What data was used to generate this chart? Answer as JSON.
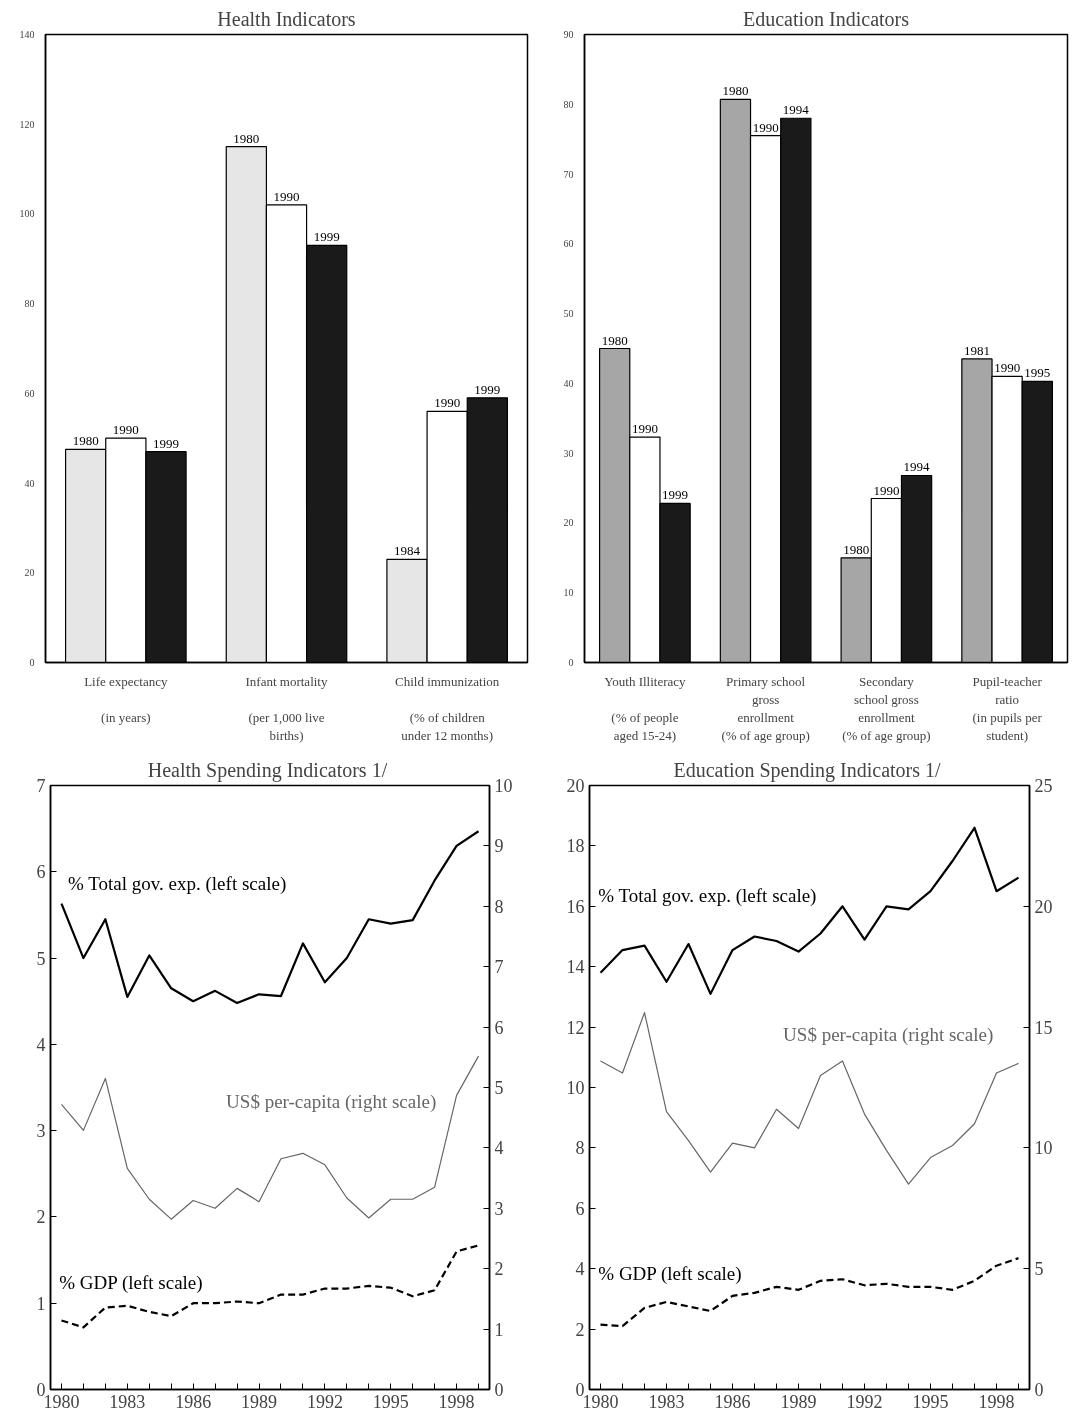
{
  "chart_data": [
    {
      "type": "bar",
      "title": "Health Indicators",
      "categories": [
        "Life expectancy\n\n(in years)",
        "Infant mortality\n\n(per 1,000 live\nbirths)",
        "Child immunization\n\n(% of children\nunder 12 months)"
      ],
      "ylim": [
        0,
        140
      ],
      "yticks": [
        0,
        20,
        40,
        60,
        80,
        100,
        120,
        140
      ],
      "grid": false,
      "series": [
        {
          "color": "#e6e6e6",
          "values": [
            47.5,
            115,
            23
          ]
        },
        {
          "color": "#ffffff",
          "values": [
            50,
            102,
            56
          ]
        },
        {
          "color": "#1a1a1a",
          "values": [
            47,
            93,
            59
          ]
        }
      ],
      "annotations": [
        "1980",
        "1990",
        "1999",
        "1980",
        "1990",
        "1999",
        "1984",
        "1990",
        "1999"
      ]
    },
    {
      "type": "bar",
      "title": "Education Indicators",
      "categories": [
        "Youth Illiteracy\n\n(% of people\naged 15-24)",
        "Primary school\ngross\nenrollment\n(% of age group)",
        "Secondary\nschool gross\nenrollment\n(% of age group)",
        "Pupil-teacher\nratio\n(in pupils per\nstudent)"
      ],
      "ylim": [
        0,
        90
      ],
      "yticks": [
        0,
        10,
        20,
        30,
        40,
        50,
        60,
        70,
        80,
        90
      ],
      "grid": false,
      "series": [
        {
          "color": "#a6a6a6",
          "values": [
            45,
            80.7,
            15,
            43.5
          ]
        },
        {
          "color": "#ffffff",
          "values": [
            32.3,
            75.5,
            23.5,
            41
          ]
        },
        {
          "color": "#1a1a1a",
          "values": [
            22.8,
            78,
            26.8,
            40.3
          ]
        }
      ],
      "annotations": [
        "1980",
        "1990",
        "1999",
        "1980",
        "1990",
        "1994",
        "1980",
        "1990",
        "1994",
        "1981",
        "1990",
        "1995"
      ]
    },
    {
      "type": "line",
      "title": "Health Spending Indicators  1/",
      "x": [
        1980,
        1981,
        1982,
        1983,
        1984,
        1985,
        1986,
        1987,
        1988,
        1989,
        1990,
        1991,
        1992,
        1993,
        1994,
        1995,
        1996,
        1997,
        1998,
        1999
      ],
      "xlim": [
        1979.5,
        1999.5
      ],
      "xticks": [
        1980,
        {
          "value": 1981,
          "label": null
        },
        {
          "value": 1982,
          "label": null
        },
        1983,
        {
          "value": 1984,
          "label": null
        },
        {
          "value": 1985,
          "label": null
        },
        1986,
        {
          "value": 1987,
          "label": null
        },
        {
          "value": 1988,
          "label": null
        },
        1989,
        {
          "value": 1990,
          "label": null
        },
        {
          "value": 1991,
          "label": null
        },
        1992,
        {
          "value": 1993,
          "label": null
        },
        {
          "value": 1994,
          "label": null
        },
        1995,
        {
          "value": 1996,
          "label": null
        },
        {
          "value": 1997,
          "label": null
        },
        1998,
        {
          "value": 1999,
          "label": null
        }
      ],
      "ylim": [
        0,
        7
      ],
      "yticks": [
        0,
        1,
        2,
        3,
        4,
        5,
        6,
        7
      ],
      "y2lim": [
        0,
        10
      ],
      "y2ticks": [
        0,
        1,
        2,
        3,
        4,
        5,
        6,
        7,
        8,
        9,
        10
      ],
      "grid": false,
      "series": [
        {
          "name": "% Total gov. exp. (left scale)",
          "color": "#000000",
          "values": [
            5.63,
            5.0,
            5.45,
            4.55,
            5.03,
            4.65,
            4.5,
            4.62,
            4.48,
            4.58,
            4.56,
            5.17,
            4.72,
            5.0,
            5.45,
            5.4,
            5.44,
            5.9,
            6.3,
            6.47
          ]
        },
        {
          "name": "US$ per-capita (right scale)",
          "color": "#666666",
          "axis": "y2",
          "values": [
            4.72,
            4.29,
            5.15,
            3.66,
            3.15,
            2.82,
            3.13,
            3.0,
            3.33,
            3.11,
            3.82,
            3.91,
            3.72,
            3.17,
            2.84,
            3.15,
            3.15,
            3.35,
            4.87,
            5.52
          ]
        },
        {
          "name": "% GDP (left scale)",
          "color": "#000000",
          "line_style": "dashed",
          "values": [
            0.8,
            0.72,
            0.95,
            0.97,
            0.9,
            0.85,
            1.0,
            1.0,
            1.02,
            1.0,
            1.1,
            1.1,
            1.17,
            1.17,
            1.2,
            1.18,
            1.08,
            1.15,
            1.6,
            1.67
          ]
        }
      ]
    },
    {
      "type": "line",
      "title": "Education Spending Indicators  1/",
      "x": [
        1980,
        1981,
        1982,
        1983,
        1984,
        1985,
        1986,
        1987,
        1988,
        1989,
        1990,
        1991,
        1992,
        1993,
        1994,
        1995,
        1996,
        1997,
        1998,
        1999
      ],
      "xlim": [
        1979.5,
        1999.5
      ],
      "xticks": [
        1980,
        {
          "value": 1981,
          "label": null
        },
        {
          "value": 1982,
          "label": null
        },
        1983,
        {
          "value": 1984,
          "label": null
        },
        {
          "value": 1985,
          "label": null
        },
        1986,
        {
          "value": 1987,
          "label": null
        },
        {
          "value": 1988,
          "label": null
        },
        1989,
        {
          "value": 1990,
          "label": null
        },
        {
          "value": 1991,
          "label": null
        },
        1992,
        {
          "value": 1993,
          "label": null
        },
        {
          "value": 1994,
          "label": null
        },
        1995,
        {
          "value": 1996,
          "label": null
        },
        {
          "value": 1997,
          "label": null
        },
        1998,
        {
          "value": 1999,
          "label": null
        }
      ],
      "ylim": [
        0,
        20
      ],
      "yticks": [
        0,
        2,
        4,
        6,
        8,
        10,
        12,
        14,
        16,
        18,
        20
      ],
      "y2lim": [
        0,
        25
      ],
      "y2ticks": [
        0,
        5,
        10,
        15,
        20,
        25
      ],
      "grid": false,
      "series": [
        {
          "name": "% Total gov. exp. (left scale)",
          "color": "#000000",
          "values": [
            13.8,
            14.55,
            14.7,
            13.5,
            14.75,
            13.1,
            14.55,
            15.0,
            14.85,
            14.5,
            15.1,
            16.0,
            14.9,
            16.0,
            15.9,
            16.5,
            17.5,
            18.6,
            16.5,
            16.95
          ]
        },
        {
          "name": "US$ per-capita (right scale)",
          "color": "#666666",
          "axis": "y2",
          "values": [
            13.6,
            13.1,
            15.6,
            11.5,
            10.3,
            9.0,
            10.2,
            10.0,
            11.6,
            10.8,
            13.0,
            13.6,
            11.4,
            9.9,
            8.5,
            9.6,
            10.1,
            11.0,
            13.1,
            13.5
          ]
        },
        {
          "name": "% GDP (left scale)",
          "color": "#000000",
          "line_style": "dashed",
          "values": [
            2.15,
            2.1,
            2.7,
            2.9,
            2.75,
            2.6,
            3.1,
            3.2,
            3.4,
            3.3,
            3.6,
            3.65,
            3.45,
            3.5,
            3.4,
            3.4,
            3.3,
            3.6,
            4.1,
            4.35
          ]
        }
      ]
    }
  ]
}
